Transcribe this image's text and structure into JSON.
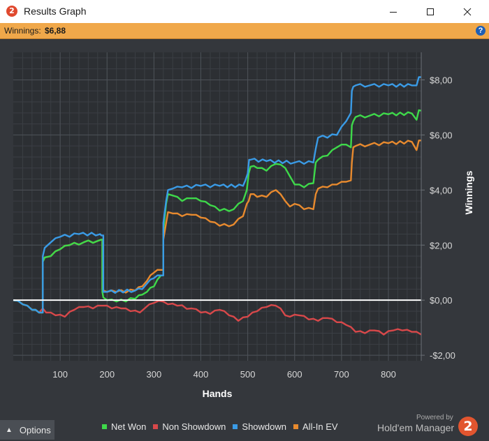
{
  "window": {
    "title": "Results Graph",
    "app_icon_glyph": "2"
  },
  "status": {
    "label": "Winnings:",
    "value": "$6,88",
    "help_glyph": "?"
  },
  "colors": {
    "net_won": "#3ed94a",
    "non_showdown": "#d8484a",
    "showdown": "#3a9be6",
    "all_in_ev": "#e88a2e",
    "zero_line": "#ffffff",
    "background": "#34373c",
    "accent": "#f0a84a"
  },
  "chart_data": {
    "type": "line",
    "xlabel": "Hands",
    "ylabel": "Winnings",
    "xlim": [
      0,
      870
    ],
    "ylim": [
      -2.2,
      9.0
    ],
    "x_ticks": [
      100,
      200,
      300,
      400,
      500,
      600,
      700,
      800
    ],
    "y_ticks": [
      8,
      6,
      4,
      2,
      0,
      -2
    ],
    "y_tick_labels": [
      "$8,00",
      "$6,00",
      "$4,00",
      "$2,00",
      "$0,00",
      "-$2,00"
    ],
    "grid": true,
    "legend_position": "bottom",
    "series": [
      {
        "name": "Net Won",
        "x": [
          0,
          20,
          40,
          55,
          63,
          67,
          80,
          100,
          120,
          150,
          180,
          188,
          190,
          192,
          200,
          220,
          260,
          275,
          285,
          300,
          315,
          320,
          326,
          330,
          340,
          360,
          380,
          400,
          420,
          440,
          470,
          490,
          498,
          502,
          506,
          520,
          540,
          560,
          580,
          590,
          600,
          620,
          640,
          645,
          650,
          670,
          690,
          710,
          720,
          722,
          725,
          730,
          760,
          800,
          850,
          860,
          865,
          870
        ],
        "y": [
          0.0,
          -0.15,
          -0.35,
          -0.45,
          1.4,
          1.55,
          1.6,
          1.85,
          2.0,
          2.1,
          2.15,
          2.2,
          0.3,
          0.1,
          0.0,
          -0.05,
          0.05,
          0.2,
          0.3,
          0.5,
          0.9,
          2.5,
          3.5,
          3.85,
          3.8,
          3.6,
          3.7,
          3.6,
          3.45,
          3.25,
          3.3,
          3.6,
          4.0,
          4.6,
          4.85,
          4.8,
          4.7,
          4.95,
          4.8,
          4.5,
          4.2,
          4.1,
          4.25,
          5.0,
          5.1,
          5.25,
          5.55,
          5.65,
          5.55,
          6.35,
          6.5,
          6.65,
          6.7,
          6.75,
          6.78,
          6.55,
          6.9,
          6.88
        ]
      },
      {
        "name": "Non Showdown",
        "x": [
          0,
          20,
          40,
          55,
          63,
          70,
          90,
          110,
          130,
          150,
          170,
          190,
          210,
          230,
          250,
          270,
          280,
          290,
          300,
          320,
          330,
          350,
          380,
          400,
          420,
          440,
          460,
          480,
          500,
          520,
          540,
          560,
          570,
          580,
          590,
          610,
          630,
          650,
          670,
          690,
          710,
          730,
          750,
          770,
          790,
          810,
          830,
          850,
          870
        ],
        "y": [
          0.0,
          -0.15,
          -0.35,
          -0.45,
          -0.3,
          -0.45,
          -0.55,
          -0.6,
          -0.35,
          -0.25,
          -0.3,
          -0.2,
          -0.3,
          -0.3,
          -0.4,
          -0.45,
          -0.3,
          -0.15,
          -0.1,
          -0.05,
          -0.15,
          -0.2,
          -0.3,
          -0.45,
          -0.5,
          -0.35,
          -0.55,
          -0.75,
          -0.6,
          -0.4,
          -0.25,
          -0.2,
          -0.3,
          -0.55,
          -0.6,
          -0.55,
          -0.7,
          -0.75,
          -0.65,
          -0.8,
          -0.9,
          -1.15,
          -1.2,
          -1.1,
          -1.25,
          -1.1,
          -1.1,
          -1.15,
          -1.25
        ]
      },
      {
        "name": "Showdown",
        "x": [
          0,
          20,
          40,
          55,
          63,
          67,
          80,
          100,
          140,
          185,
          188,
          192,
          200,
          260,
          275,
          285,
          300,
          315,
          320,
          326,
          330,
          340,
          360,
          400,
          440,
          490,
          495,
          500,
          503,
          506,
          540,
          600,
          640,
          645,
          650,
          690,
          700,
          710,
          720,
          722,
          725,
          730,
          760,
          800,
          850,
          860,
          865,
          870
        ],
        "y": [
          0.0,
          -0.15,
          -0.35,
          -0.45,
          1.6,
          1.9,
          2.1,
          2.3,
          2.4,
          2.4,
          2.35,
          0.3,
          0.3,
          0.35,
          0.4,
          0.6,
          0.8,
          0.9,
          2.8,
          3.6,
          4.0,
          4.05,
          4.1,
          4.15,
          4.15,
          4.15,
          4.35,
          4.6,
          5.1,
          5.1,
          5.05,
          5.0,
          5.0,
          5.5,
          5.9,
          6.0,
          6.3,
          6.5,
          6.8,
          7.6,
          7.75,
          7.8,
          7.8,
          7.8,
          7.8,
          7.8,
          8.1,
          8.1
        ]
      },
      {
        "name": "All-In EV",
        "x": [
          0,
          20,
          40,
          55,
          63,
          67,
          80,
          100,
          120,
          150,
          180,
          188,
          190,
          192,
          200,
          220,
          260,
          275,
          285,
          300,
          315,
          320,
          326,
          330,
          340,
          360,
          380,
          400,
          420,
          440,
          470,
          490,
          498,
          502,
          506,
          520,
          540,
          560,
          580,
          590,
          600,
          620,
          640,
          645,
          650,
          670,
          690,
          710,
          720,
          722,
          725,
          730,
          760,
          800,
          850,
          860,
          865,
          870
        ],
        "y": [
          0.0,
          -0.15,
          -0.35,
          -0.45,
          1.4,
          1.55,
          1.6,
          1.85,
          2.0,
          2.1,
          2.15,
          2.2,
          0.4,
          0.35,
          0.3,
          0.3,
          0.35,
          0.5,
          0.7,
          1.0,
          1.1,
          2.2,
          2.8,
          3.2,
          3.15,
          3.05,
          3.1,
          3.0,
          2.85,
          2.7,
          2.75,
          3.05,
          3.5,
          3.6,
          3.85,
          3.75,
          3.75,
          4.0,
          3.6,
          3.4,
          3.5,
          3.3,
          3.3,
          3.85,
          4.05,
          4.1,
          4.2,
          4.3,
          4.35,
          5.0,
          5.55,
          5.6,
          5.65,
          5.7,
          5.75,
          5.45,
          5.8,
          5.8
        ]
      }
    ]
  },
  "bottom": {
    "options_label": "Options",
    "powered_by": "Powered by",
    "brand_name": "Hold'em Manager",
    "brand_logo_glyph": "2"
  }
}
